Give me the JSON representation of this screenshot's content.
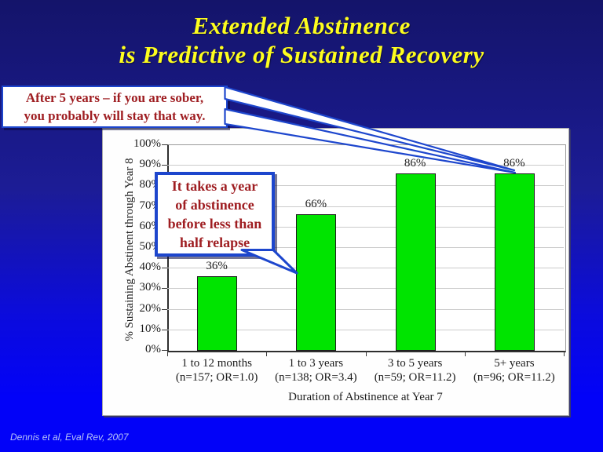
{
  "title": {
    "line1": "Extended Abstinence",
    "line2": "is Predictive of Sustained Recovery"
  },
  "callouts": [
    {
      "lines": [
        "After 5 years – if you are sober,",
        "you probably will stay that way."
      ]
    },
    {
      "lines": [
        "It takes a year",
        "of abstinence",
        "before less than",
        "half relapse"
      ]
    }
  ],
  "citation": "Dennis et al, Eval Rev, 2007",
  "colors": {
    "bg-top": "#14146a",
    "bg-bottom": "#0202f8",
    "title-yellow": "#fdfd1e",
    "callout-red": "#9f1e22",
    "accent-blue": "#1d46cd",
    "bar-green": "#00e400",
    "citation-blue": "#b6c2f7"
  },
  "chart_data": {
    "type": "bar",
    "categories": [
      "1 to 12 months",
      "1 to 3 years",
      "3 to 5 years",
      "5+ years"
    ],
    "category_notes": [
      "(n=157; OR=1.0)",
      "(n=138; OR=3.4)",
      "(n=59; OR=11.2)",
      "(n=96; OR=11.2)"
    ],
    "values": [
      36,
      66,
      86,
      86
    ],
    "value_labels": [
      "36%",
      "66%",
      "86%",
      "86%"
    ],
    "xlabel": "Duration of Abstinence at Year 7",
    "ylabel": "% Sustaining Abstinent through Year 8",
    "ylim": [
      0,
      100
    ],
    "ytick_step": 10,
    "ytick_suffix": "%",
    "grid": true,
    "legend": "none",
    "bar_color": "#00e400"
  }
}
